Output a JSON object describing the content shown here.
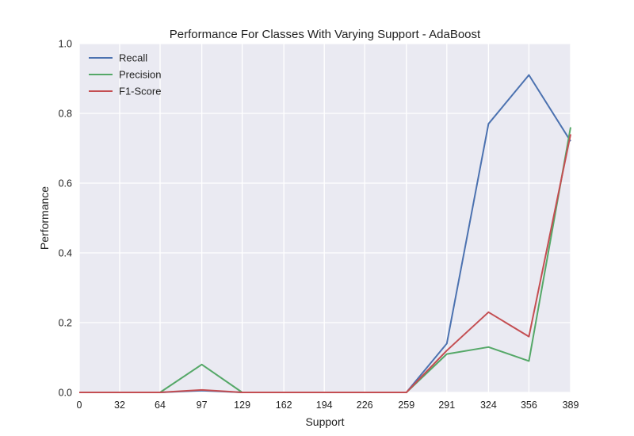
{
  "chart_data": {
    "type": "line",
    "title": "Performance For Classes With Varying Support - AdaBoost",
    "xlabel": "Support",
    "ylabel": "Performance",
    "x": [
      0,
      32,
      64,
      97,
      129,
      162,
      194,
      226,
      259,
      291,
      324,
      356,
      389
    ],
    "x_tick_labels": [
      "0",
      "32",
      "64",
      "97",
      "129",
      "162",
      "194",
      "226",
      "259",
      "291",
      "324",
      "356",
      "389"
    ],
    "xlim": [
      0,
      389
    ],
    "ylim": [
      0,
      1.0
    ],
    "y_ticks": [
      0.0,
      0.2,
      0.4,
      0.6,
      0.8,
      1.0
    ],
    "y_tick_labels": [
      "0.0",
      "0.2",
      "0.4",
      "0.6",
      "0.8",
      "1.0"
    ],
    "grid": true,
    "legend_position": "top-left",
    "series": [
      {
        "name": "Recall",
        "color": "#4c72b0",
        "values": [
          0,
          0,
          0,
          0.005,
          0,
          0,
          0,
          0,
          0,
          0.14,
          0.77,
          0.91,
          0.72
        ]
      },
      {
        "name": "Precision",
        "color": "#55a868",
        "values": [
          0,
          0,
          0,
          0.08,
          0,
          0,
          0,
          0,
          0,
          0.11,
          0.13,
          0.09,
          0.76
        ]
      },
      {
        "name": "F1-Score",
        "color": "#c44e52",
        "values": [
          0,
          0,
          0,
          0.007,
          0,
          0,
          0,
          0,
          0,
          0.12,
          0.23,
          0.16,
          0.74
        ]
      }
    ]
  }
}
